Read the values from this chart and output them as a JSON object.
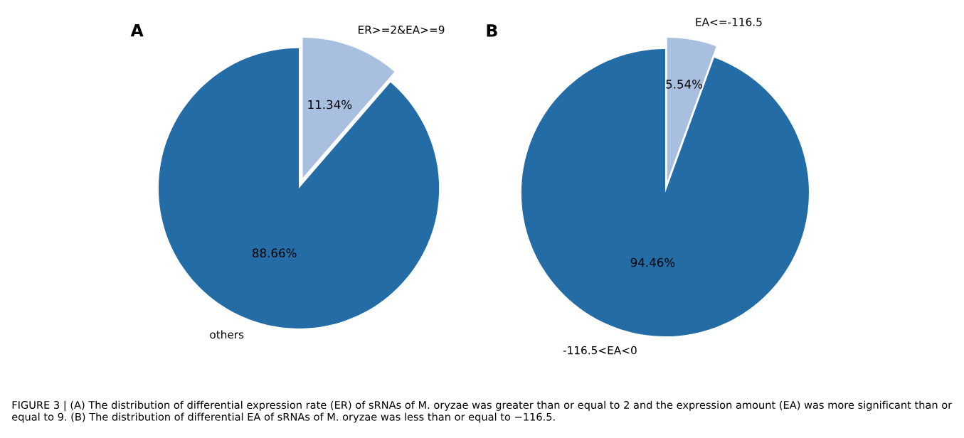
{
  "chart_data": [
    {
      "type": "pie",
      "title": "A",
      "categories": [
        "ER>=2&EA>=9",
        "others"
      ],
      "values": [
        11.34,
        88.66
      ],
      "colors": [
        "#a9bfe0",
        "#236ca6"
      ],
      "value_labels": [
        "11.34%",
        "88.66%"
      ],
      "annotations": [
        "FIGURE 3 | (A) The distribution of differential expression rate (ER) of sRNAs of M. oryzae was greater than or equal to 2 and the expression amount (EA) was more significant than or equal to 9. (B) The distribution of differential EA of sRNAs of M. oryzae was less than or equal to −116.5."
      ]
    },
    {
      "type": "pie",
      "title": "B",
      "categories": [
        "EA<=-116.5",
        "-116.5<EA<0"
      ],
      "values": [
        5.54,
        94.46
      ],
      "colors": [
        "#a9bfe0",
        "#236ca6"
      ],
      "value_labels": [
        "5.54%",
        "94.46%"
      ]
    }
  ]
}
